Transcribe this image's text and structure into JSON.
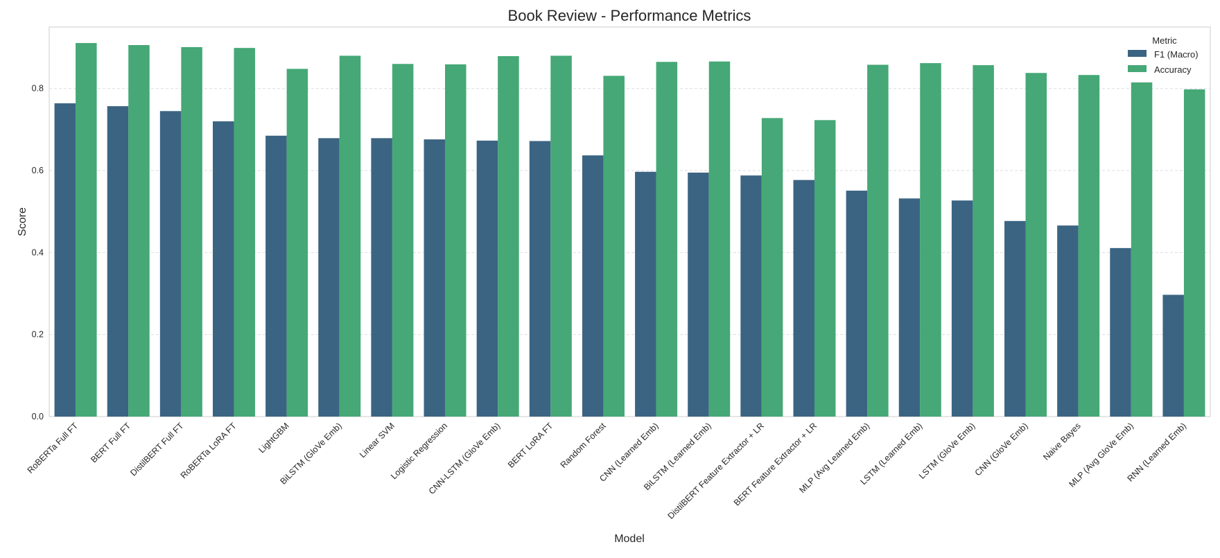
{
  "chart_data": {
    "type": "bar",
    "title": "Book Review - Performance Metrics",
    "xlabel": "Model",
    "ylabel": "Score",
    "ylim": [
      0,
      0.95
    ],
    "yticks": [
      "0.0",
      "0.2",
      "0.4",
      "0.6",
      "0.8"
    ],
    "grid": true,
    "legend": {
      "title": "Metric",
      "placement": "top-right"
    },
    "categories": [
      "RoBERTa Full FT",
      "BERT Full FT",
      "DistilBERT Full FT",
      "RoBERTa LoRA FT",
      "LightGBM",
      "BiLSTM (GloVe Emb)",
      "Linear SVM",
      "Logistic Regression",
      "CNN-LSTM (GloVe Emb)",
      "BERT LoRA FT",
      "Random Forest",
      "CNN (Learned Emb)",
      "BiLSTM (Learned Emb)",
      "DistilBERT Feature Extractor + LR",
      "BERT Feature Extractor + LR",
      "MLP (Avg Learned Emb)",
      "LSTM (Learned Emb)",
      "LSTM (GloVe Emb)",
      "CNN (GloVe Emb)",
      "Naive Bayes",
      "MLP (Avg GloVe Emb)",
      "RNN (Learned Emb)"
    ],
    "series": [
      {
        "name": "F1 (Macro)",
        "color": "#3b6482",
        "values": [
          0.764,
          0.757,
          0.745,
          0.72,
          0.685,
          0.679,
          0.679,
          0.676,
          0.673,
          0.672,
          0.637,
          0.597,
          0.595,
          0.588,
          0.577,
          0.551,
          0.532,
          0.527,
          0.477,
          0.466,
          0.411,
          0.297
        ]
      },
      {
        "name": "Accuracy",
        "color": "#45a876",
        "values": [
          0.911,
          0.906,
          0.901,
          0.899,
          0.848,
          0.88,
          0.86,
          0.859,
          0.879,
          0.88,
          0.831,
          0.865,
          0.866,
          0.728,
          0.723,
          0.858,
          0.862,
          0.857,
          0.838,
          0.833,
          0.815,
          0.798
        ]
      }
    ]
  }
}
